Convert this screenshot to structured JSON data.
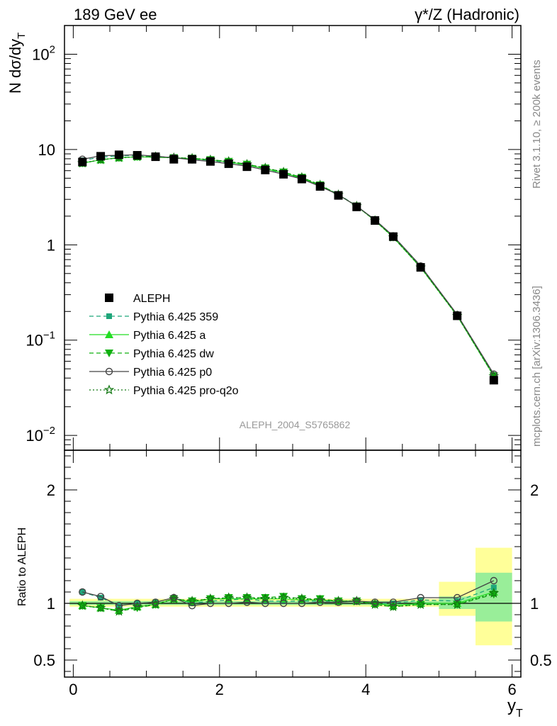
{
  "header": {
    "left": "189 GeV ee",
    "right": "γ*/Z (Hadronic)"
  },
  "side": {
    "rivet": "Rivet 3.1.10, ≥ 200k events",
    "mcplots": "mcplots.cern.ch [arXiv:1306.3436]"
  },
  "watermark": "ALEPH_2004_S5765862",
  "colors": {
    "aleph": "#000000",
    "p359": "#1fa67a",
    "pa": "#22dd22",
    "pdw": "#10b010",
    "pp0": "#444444",
    "pq2o": "#117711",
    "band_outer": "#ffff99",
    "band_inner": "#99ee99"
  },
  "chart_data": {
    "type": "scatter",
    "x": [
      0.125,
      0.375,
      0.625,
      0.875,
      1.125,
      1.375,
      1.625,
      1.875,
      2.125,
      2.375,
      2.625,
      2.875,
      3.125,
      3.375,
      3.625,
      3.875,
      4.125,
      4.375,
      4.75,
      5.25,
      5.75
    ],
    "main": {
      "ylabel": "N dσ/dy",
      "ylabel_sub": "T",
      "yscale": "log",
      "ylim": [
        0.007,
        200
      ],
      "yticks": [
        {
          "value": 100,
          "base": "10",
          "exp": "2"
        },
        {
          "value": 10,
          "base": "10",
          "exp": ""
        },
        {
          "value": 1,
          "base": "1",
          "exp": ""
        },
        {
          "value": 0.1,
          "base": "10",
          "exp": "−1"
        },
        {
          "value": 0.01,
          "base": "10",
          "exp": "−2"
        }
      ]
    },
    "ratio": {
      "ylabel": "Ratio to ALEPH",
      "ylim": [
        0.35,
        2.35
      ],
      "yticks": [
        "0.5",
        "1",
        "2"
      ],
      "ytick_values": [
        0.5,
        1,
        2
      ],
      "bands": [
        {
          "x0": -0.05,
          "x1": 5.0,
          "outer": [
            0.97,
            1.04
          ],
          "inner": [
            0.985,
            1.02
          ]
        },
        {
          "x0": 5.0,
          "x1": 5.5,
          "outer": [
            0.89,
            1.19
          ],
          "inner": [
            0.95,
            1.06
          ]
        },
        {
          "x0": 5.5,
          "x1": 6.0,
          "outer": [
            0.63,
            1.49
          ],
          "inner": [
            0.84,
            1.27
          ]
        }
      ]
    },
    "xaxis": {
      "xlabel": "y",
      "xlabel_sub": "T",
      "xlim": [
        -0.12,
        6.12
      ],
      "xticks": [
        "0",
        "2",
        "4",
        "6"
      ],
      "xtick_values": [
        0,
        2,
        4,
        6
      ]
    },
    "legend_position": "center-left",
    "series": [
      {
        "name": "ALEPH",
        "marker": "square",
        "line": "none",
        "color": "#000000",
        "values": [
          7.4,
          8.5,
          8.8,
          8.7,
          8.4,
          7.9,
          7.9,
          7.5,
          7.1,
          6.6,
          6.1,
          5.5,
          4.9,
          4.1,
          3.3,
          2.5,
          1.8,
          1.22,
          0.58,
          0.18,
          0.038
        ]
      },
      {
        "name": "Pythia 6.425 359",
        "marker": "square-small",
        "line": "dashed",
        "color": "#1fa67a",
        "values": [
          7.7,
          8.3,
          8.6,
          8.7,
          8.5,
          8.2,
          8.0,
          7.7,
          7.3,
          6.9,
          6.3,
          5.6,
          5.0,
          4.2,
          3.4,
          2.55,
          1.83,
          1.24,
          0.6,
          0.184,
          0.043
        ]
      },
      {
        "name": "Pythia 6.425 a",
        "marker": "triangle-up",
        "line": "solid",
        "color": "#22dd22",
        "values": [
          7.2,
          7.8,
          8.2,
          8.4,
          8.3,
          8.2,
          8.0,
          7.8,
          7.4,
          6.9,
          6.3,
          5.7,
          5.0,
          4.2,
          3.35,
          2.55,
          1.8,
          1.2,
          0.58,
          0.18,
          0.042
        ]
      },
      {
        "name": "Pythia 6.425 dw",
        "marker": "triangle-down",
        "line": "dashed",
        "color": "#10b010",
        "values": [
          7.2,
          7.8,
          8.2,
          8.4,
          8.4,
          8.2,
          8.1,
          7.8,
          7.5,
          7.0,
          6.4,
          5.8,
          5.1,
          4.25,
          3.35,
          2.55,
          1.8,
          1.2,
          0.58,
          0.18,
          0.042
        ]
      },
      {
        "name": "Pythia 6.425 p0",
        "marker": "circle-open",
        "line": "solid",
        "color": "#444444",
        "values": [
          7.9,
          8.6,
          8.7,
          8.8,
          8.5,
          8.2,
          7.8,
          7.5,
          7.1,
          6.7,
          6.1,
          5.5,
          4.9,
          4.1,
          3.35,
          2.55,
          1.83,
          1.24,
          0.6,
          0.185,
          0.044
        ]
      },
      {
        "name": "Pythia 6.425 pro-q2o",
        "marker": "star-open",
        "line": "dotted",
        "color": "#117711",
        "values": [
          7.2,
          7.8,
          8.2,
          8.4,
          8.4,
          8.2,
          8.1,
          7.8,
          7.5,
          7.0,
          6.4,
          5.8,
          5.1,
          4.25,
          3.35,
          2.55,
          1.8,
          1.2,
          0.58,
          0.18,
          0.042
        ]
      }
    ],
    "ratio_series": [
      {
        "name": "Pythia 6.425 359",
        "values": [
          1.1,
          1.05,
          0.98,
          1.0,
          1.01,
          1.05,
          1.0,
          1.02,
          1.03,
          1.04,
          1.02,
          1.02,
          1.02,
          1.02,
          1.02,
          1.02,
          1.0,
          1.0,
          1.03,
          1.02,
          1.14
        ]
      },
      {
        "name": "Pythia 6.425 a",
        "values": [
          0.98,
          0.96,
          0.94,
          0.97,
          0.99,
          1.04,
          1.01,
          1.04,
          1.04,
          1.04,
          1.04,
          1.04,
          1.03,
          1.03,
          1.02,
          1.02,
          1.0,
          0.98,
          1.0,
          1.0,
          1.1
        ]
      },
      {
        "name": "Pythia 6.425 dw",
        "values": [
          0.98,
          0.96,
          0.93,
          0.96,
          0.99,
          1.04,
          1.02,
          1.04,
          1.05,
          1.05,
          1.05,
          1.06,
          1.04,
          1.04,
          1.02,
          1.02,
          0.99,
          0.97,
          0.99,
          0.99,
          1.08
        ]
      },
      {
        "name": "Pythia 6.425 p0",
        "values": [
          1.1,
          1.06,
          0.98,
          1.0,
          1.01,
          1.05,
          0.98,
          1.0,
          1.0,
          1.01,
          1.0,
          1.0,
          1.0,
          1.01,
          1.01,
          1.02,
          1.01,
          1.01,
          1.05,
          1.05,
          1.2
        ]
      },
      {
        "name": "Pythia 6.425 pro-q2o",
        "values": [
          0.98,
          0.96,
          0.93,
          0.97,
          0.99,
          1.04,
          1.02,
          1.04,
          1.05,
          1.05,
          1.04,
          1.05,
          1.04,
          1.03,
          1.02,
          1.02,
          0.99,
          0.97,
          0.99,
          0.99,
          1.09
        ]
      }
    ]
  }
}
